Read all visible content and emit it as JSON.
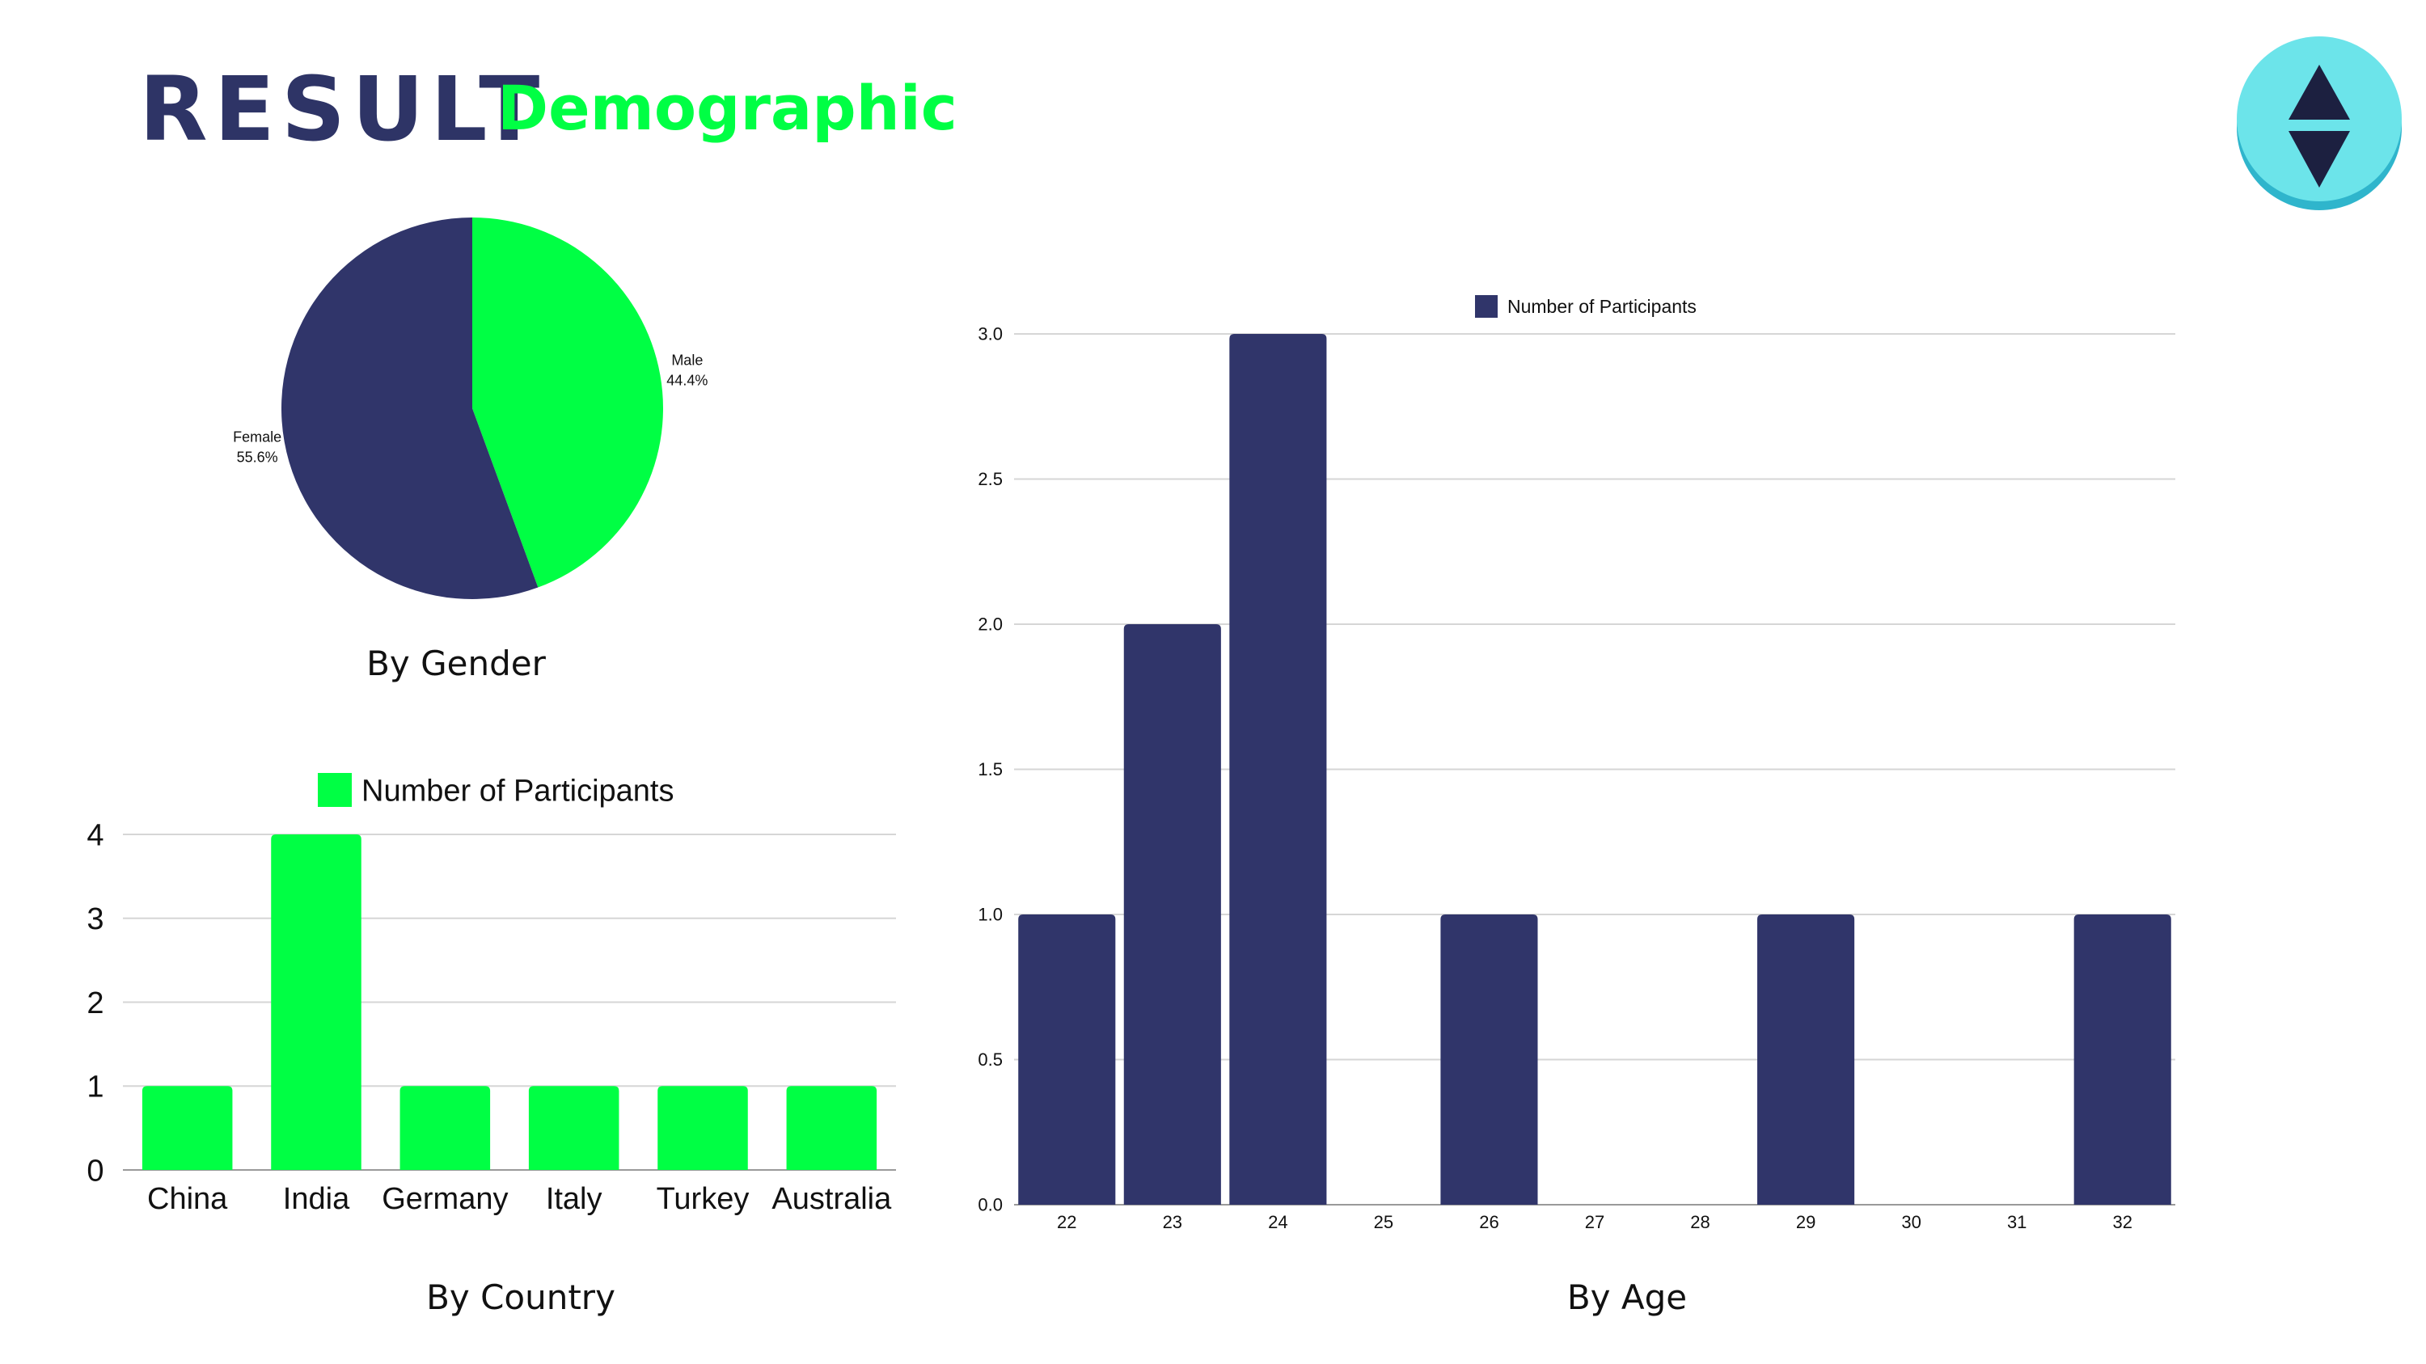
{
  "header": {
    "title": "RESULT",
    "subtitle": "Demographic",
    "title_color": "#2e3466",
    "subtitle_color": "#00ff44"
  },
  "logo": {
    "icon": "up-down-arrows-icon",
    "bg_color": "#6ce4ea",
    "shadow_color": "#2fb5cc",
    "arrow_color": "#1c2040"
  },
  "captions": {
    "gender": "By Gender",
    "country": "By Country",
    "age": "By Age"
  },
  "chart_data": [
    {
      "type": "pie",
      "categories": [
        "Male",
        "Female"
      ],
      "values": [
        44.4,
        55.6
      ],
      "labels": [
        "44.4%",
        "55.6%"
      ],
      "colors": [
        "#00ff44",
        "#30356a"
      ]
    },
    {
      "type": "bar",
      "categories": [
        "China",
        "India",
        "Germany",
        "Italy",
        "Turkey",
        "Australia"
      ],
      "series": [
        {
          "name": "Number of Participants",
          "values": [
            1,
            4,
            1,
            1,
            1,
            1
          ]
        }
      ],
      "yticks": [
        "0",
        "1",
        "2",
        "3",
        "4"
      ],
      "ylim": [
        0,
        4
      ],
      "grid": true,
      "legend": "top",
      "color": "#00ff44"
    },
    {
      "type": "bar",
      "categories": [
        "22",
        "23",
        "24",
        "25",
        "26",
        "27",
        "28",
        "29",
        "30",
        "31",
        "32"
      ],
      "series": [
        {
          "name": "Number of Participants",
          "values": [
            1,
            2,
            3,
            0,
            1,
            0,
            0,
            1,
            0,
            0,
            1
          ]
        }
      ],
      "yticks": [
        "0.0",
        "0.5",
        "1.0",
        "1.5",
        "2.0",
        "2.5",
        "3.0"
      ],
      "ylim": [
        0,
        3
      ],
      "grid": true,
      "legend": "top",
      "color": "#30356a"
    }
  ]
}
